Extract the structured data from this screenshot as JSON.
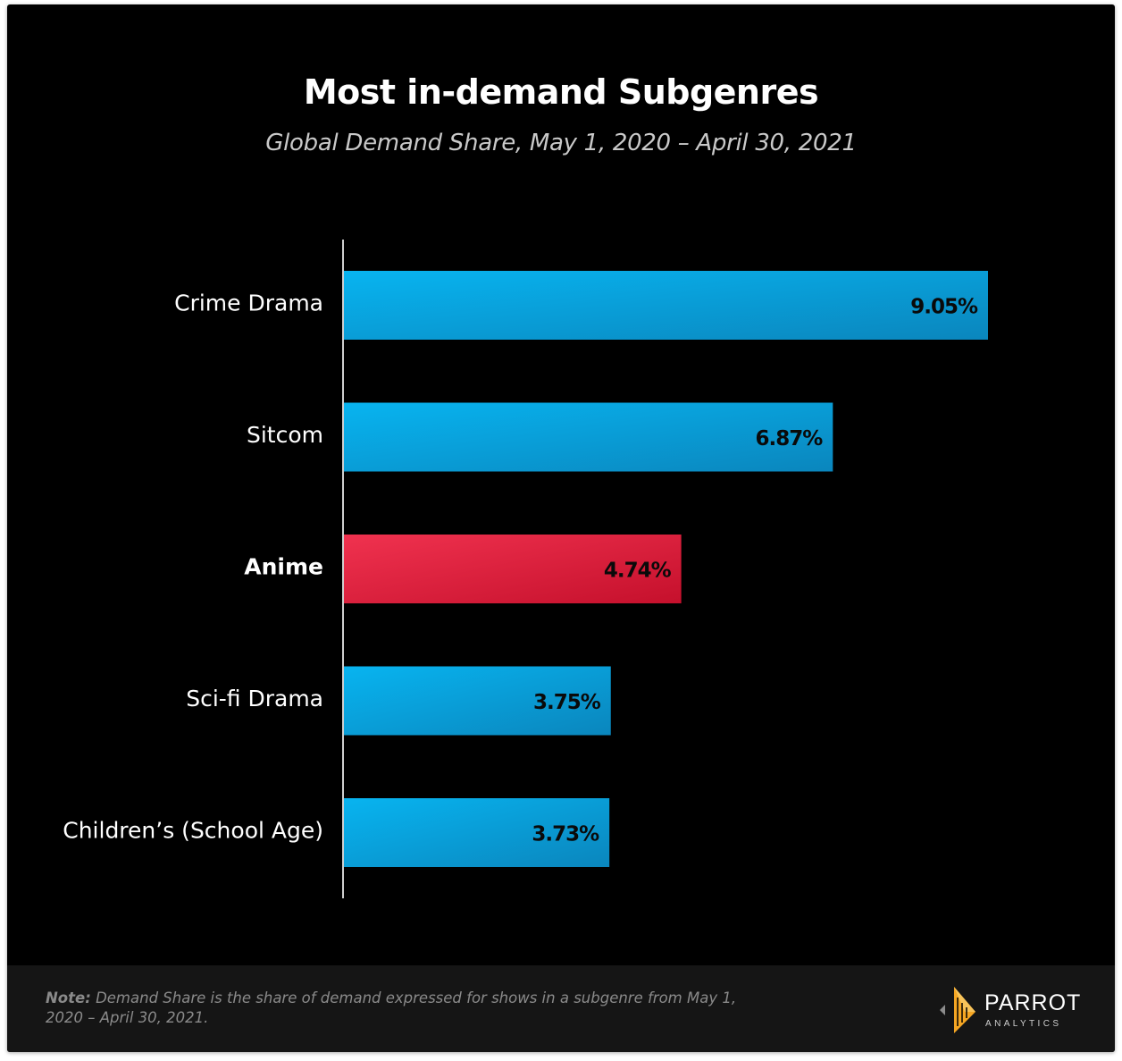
{
  "header": {
    "title": "Most in-demand Subgenres",
    "subtitle": "Global Demand Share,  May 1, 2020 – April 30, 2021"
  },
  "chart_data": {
    "type": "bar",
    "orientation": "horizontal",
    "categories": [
      "Crime Drama",
      "Sitcom",
      "Anime",
      "Sci-fi Drama",
      "Children’s (School Age)"
    ],
    "values": [
      9.05,
      6.87,
      4.74,
      3.75,
      3.73
    ],
    "value_labels": [
      "9.05%",
      "6.87%",
      "4.74%",
      "3.75%",
      "3.73%"
    ],
    "highlight_category": "Anime",
    "colors": {
      "default": "#1aa9e6",
      "highlight": "#e8213f"
    },
    "xlim": [
      0,
      9.05
    ],
    "grid": false,
    "legend": "none"
  },
  "footer": {
    "note_label": "Note:",
    "note_text": "Demand Share is the share of demand expressed for shows in a subgenre from May 1, 2020 – April 30, 2021.",
    "brand": "PARROT",
    "brand_sub": "ANALYTICS"
  }
}
